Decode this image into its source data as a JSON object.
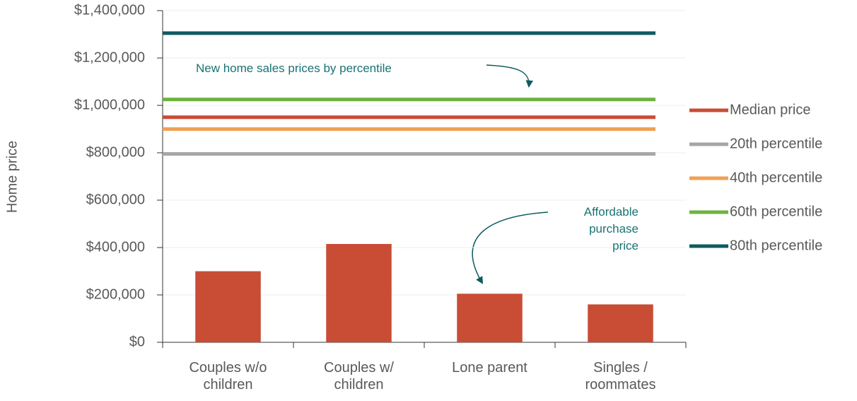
{
  "chart_data": {
    "type": "bar",
    "y_axis_label": "Home price",
    "categories": [
      "Couples w/o\nchildren",
      "Couples w/\nchildren",
      "Lone parent",
      "Singles /\nroommates"
    ],
    "values": [
      300000,
      415000,
      205000,
      160000
    ],
    "color": "#c94c35",
    "ylim": [
      0,
      1400000
    ],
    "yticks": [
      {
        "value": 0,
        "label": "$0"
      },
      {
        "value": 200000,
        "label": "$200,000"
      },
      {
        "value": 400000,
        "label": "$400,000"
      },
      {
        "value": 600000,
        "label": "$600,000"
      },
      {
        "value": 800000,
        "label": "$800,000"
      },
      {
        "value": 1000000,
        "label": "$1,000,000"
      },
      {
        "value": 1200000,
        "label": "$1,200,000"
      },
      {
        "value": 1400000,
        "label": "$1,400,000"
      }
    ],
    "grid": true,
    "reference_lines": [
      {
        "name": "Median price",
        "color": "#c94c35",
        "value": 950000
      },
      {
        "name": "20th percentile",
        "color": "#a6a6a6",
        "value": 795000
      },
      {
        "name": "40th percentile",
        "color": "#f0a055",
        "value": 900000
      },
      {
        "name": "60th percentile",
        "color": "#6db33f",
        "value": 1025000
      },
      {
        "name": "80th percentile",
        "color": "#0e5b5f",
        "value": 1305000
      }
    ],
    "legend": "right",
    "annotations": [
      "New home sales prices by percentile",
      "Affordable\npurchase\nprice"
    ]
  }
}
